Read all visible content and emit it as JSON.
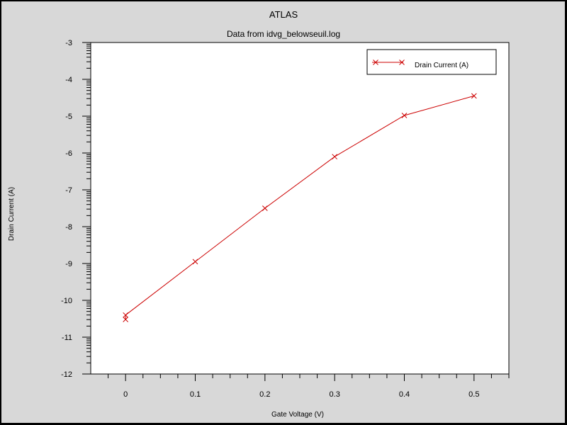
{
  "chart_data": {
    "type": "line",
    "title": "ATLAS",
    "subtitle": "Data from idvg_belowseuil.log",
    "xlabel": "Gate Voltage (V)",
    "ylabel": "Drain Current (A)",
    "xlim": [
      -0.05,
      0.55
    ],
    "ylim": [
      -12,
      -3
    ],
    "xticks": [
      0,
      0.1,
      0.2,
      0.3,
      0.4,
      0.5
    ],
    "xtick_labels": [
      "0",
      "0.1",
      "0.2",
      "0.3",
      "0.4",
      "0.5"
    ],
    "yticks": [
      -3,
      -4,
      -5,
      -6,
      -7,
      -8,
      -9,
      -10,
      -11,
      -12
    ],
    "ytick_labels": [
      "-3",
      "-4",
      "-5",
      "-6",
      "-7",
      "-8",
      "-9",
      "-10",
      "-11",
      "-12"
    ],
    "legend_position": "top-right",
    "grid": false,
    "series": [
      {
        "name": "Drain Current (A)",
        "color": "#cc0000",
        "marker": "x",
        "x": [
          0,
          0,
          0.1,
          0.2,
          0.3,
          0.4,
          0.5
        ],
        "y": [
          -10.52,
          -10.4,
          -8.95,
          -7.5,
          -6.1,
          -4.98,
          -4.45
        ]
      }
    ]
  },
  "colors": {
    "background": "#d8d8d8",
    "plot_area": "#ffffff",
    "border": "#000000",
    "series": "#cc0000"
  }
}
